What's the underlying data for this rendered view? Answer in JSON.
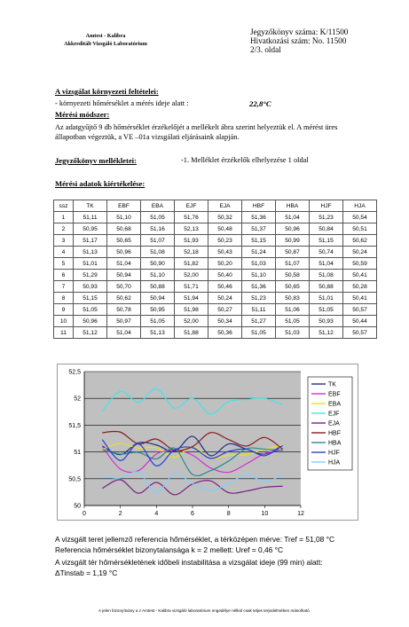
{
  "header": {
    "org_line1": "Amtest - Kalibra",
    "org_line2": "Akkreditált Vizsgáló Laboratórium",
    "report_number": "Jegyzőkönyv száma: K/11500",
    "ref_number": "Hivatkozási szám: No. 11500",
    "page": "2/3. oldal"
  },
  "env": {
    "heading": "A vizsgálat környezeti feltételei:",
    "line": "- környezeti hőmérséklet a mérés ideje alatt :",
    "temperature": "22,8°C"
  },
  "method": {
    "heading": "Mérési módszer:",
    "text": "Az adatgyűjtő 9 db hőmérséklet érzékelőjét a mellékelt ábra szerint helyeztük el. A mérést üres állapotban végeztük, a VE –01a vizsgálati eljárásaink alapján."
  },
  "annex": {
    "heading": "Jegyzőkönyv mellékletei:",
    "value": "-1. Melléklet érzékelők elhelyezése 1 oldal"
  },
  "eval": {
    "heading": "Mérési adatok kiértékelése:"
  },
  "table": {
    "headers": [
      "ssz",
      "TK",
      "EBF",
      "EBA",
      "EJF",
      "EJA",
      "HBF",
      "HBA",
      "HJF",
      "HJA"
    ],
    "rows": [
      [
        "1",
        "51,11",
        "51,10",
        "51,05",
        "51,76",
        "50,32",
        "51,36",
        "51,04",
        "51,23",
        "50,54"
      ],
      [
        "2",
        "50,95",
        "50,68",
        "51,16",
        "52,13",
        "50,48",
        "51,37",
        "50,96",
        "50,84",
        "50,51"
      ],
      [
        "3",
        "51,17",
        "50,65",
        "51,07",
        "51,93",
        "50,23",
        "51,15",
        "50,99",
        "51,15",
        "50,62"
      ],
      [
        "4",
        "51,13",
        "50,96",
        "51,08",
        "52,18",
        "50,43",
        "51,24",
        "50,87",
        "50,74",
        "50,24"
      ],
      [
        "5",
        "51,01",
        "51,04",
        "50,90",
        "51,82",
        "50,20",
        "51,03",
        "51,07",
        "51,04",
        "50,59"
      ],
      [
        "6",
        "51,29",
        "50,94",
        "51,10",
        "52,00",
        "50,40",
        "51,10",
        "50,58",
        "51,08",
        "50,41"
      ],
      [
        "7",
        "50,93",
        "50,70",
        "50,88",
        "51,71",
        "50,46",
        "51,36",
        "50,65",
        "50,88",
        "50,28"
      ],
      [
        "8",
        "51,15",
        "50,62",
        "50,94",
        "51,94",
        "50,24",
        "51,23",
        "50,83",
        "51,01",
        "50,41"
      ],
      [
        "9",
        "51,05",
        "50,78",
        "50,95",
        "51,98",
        "50,27",
        "51,11",
        "51,06",
        "51,05",
        "50,57"
      ],
      [
        "10",
        "50,96",
        "50,97",
        "51,05",
        "52,00",
        "50,34",
        "51,27",
        "51,05",
        "50,93",
        "50,44"
      ],
      [
        "11",
        "51,12",
        "51,04",
        "51,13",
        "51,88",
        "50,36",
        "51,05",
        "51,03",
        "51,12",
        "50,57"
      ]
    ]
  },
  "chart_data": {
    "type": "line",
    "x": [
      1,
      2,
      3,
      4,
      5,
      6,
      7,
      8,
      9,
      10,
      11
    ],
    "xlim": [
      0,
      12
    ],
    "ylim": [
      50,
      52.5
    ],
    "x_ticks": [
      "0",
      "2",
      "4",
      "6",
      "8",
      "10",
      "12"
    ],
    "y_ticks": [
      "50",
      "50,5",
      "51",
      "51,5",
      "52",
      "52,5"
    ],
    "grid": true,
    "legend_position": "right",
    "plot_background": "#c0c0c0",
    "series": [
      {
        "name": "TK",
        "color": "#1f2f8f",
        "values": [
          51.11,
          50.95,
          51.17,
          51.13,
          51.01,
          51.29,
          50.93,
          51.15,
          51.05,
          50.96,
          51.12
        ]
      },
      {
        "name": "EBF",
        "color": "#d12fd1",
        "values": [
          51.1,
          50.68,
          50.65,
          50.96,
          51.04,
          50.94,
          50.7,
          50.62,
          50.78,
          50.97,
          51.04
        ]
      },
      {
        "name": "EBA",
        "color": "#e8e025",
        "values": [
          51.05,
          51.16,
          51.07,
          51.08,
          50.9,
          51.1,
          50.88,
          50.94,
          50.95,
          51.05,
          51.13
        ]
      },
      {
        "name": "EJF",
        "color": "#3fe6ea",
        "values": [
          51.76,
          52.13,
          51.93,
          52.18,
          51.82,
          52.0,
          51.71,
          51.94,
          51.98,
          52.0,
          51.88
        ]
      },
      {
        "name": "EJA",
        "color": "#7a1f86",
        "values": [
          50.32,
          50.48,
          50.23,
          50.43,
          50.2,
          50.4,
          50.46,
          50.24,
          50.27,
          50.34,
          50.36
        ]
      },
      {
        "name": "HBF",
        "color": "#8a1c1c",
        "values": [
          51.36,
          51.37,
          51.15,
          51.24,
          51.03,
          51.1,
          51.36,
          51.23,
          51.11,
          51.27,
          51.05
        ]
      },
      {
        "name": "HBA",
        "color": "#2a8a8a",
        "values": [
          51.04,
          50.96,
          50.99,
          50.87,
          51.07,
          50.58,
          50.65,
          50.83,
          51.06,
          51.05,
          51.03
        ]
      },
      {
        "name": "HJF",
        "color": "#2a3fd6",
        "values": [
          51.23,
          50.84,
          51.15,
          50.74,
          51.04,
          51.08,
          50.88,
          51.01,
          51.05,
          50.93,
          51.12
        ]
      },
      {
        "name": "HJA",
        "color": "#7fd0ff",
        "values": [
          50.54,
          50.51,
          50.62,
          50.24,
          50.59,
          50.41,
          50.28,
          50.41,
          50.57,
          50.44,
          50.57
        ]
      }
    ]
  },
  "summary": {
    "line1": "A vizsgált teret jellemző referencia hőmérséklet, a térközépen mérve: Tref = 51,08 °C",
    "line2": "Referencia hőmérséklet bizonytalansága k = 2 mellett: Uref = 0,46 °C",
    "line3": "A vizsgált tér hőmérsékletének időbeli instabilitása a vizsgálat ideje (99 min) alatt:",
    "line4": "ΔTinstab = 1,19 °C"
  },
  "footer": "A jelen bizonyítvány a z Amtest - Kalibra vizsgáló laboratórium engedélye nélkül csak teljes terjedelmében másolható."
}
